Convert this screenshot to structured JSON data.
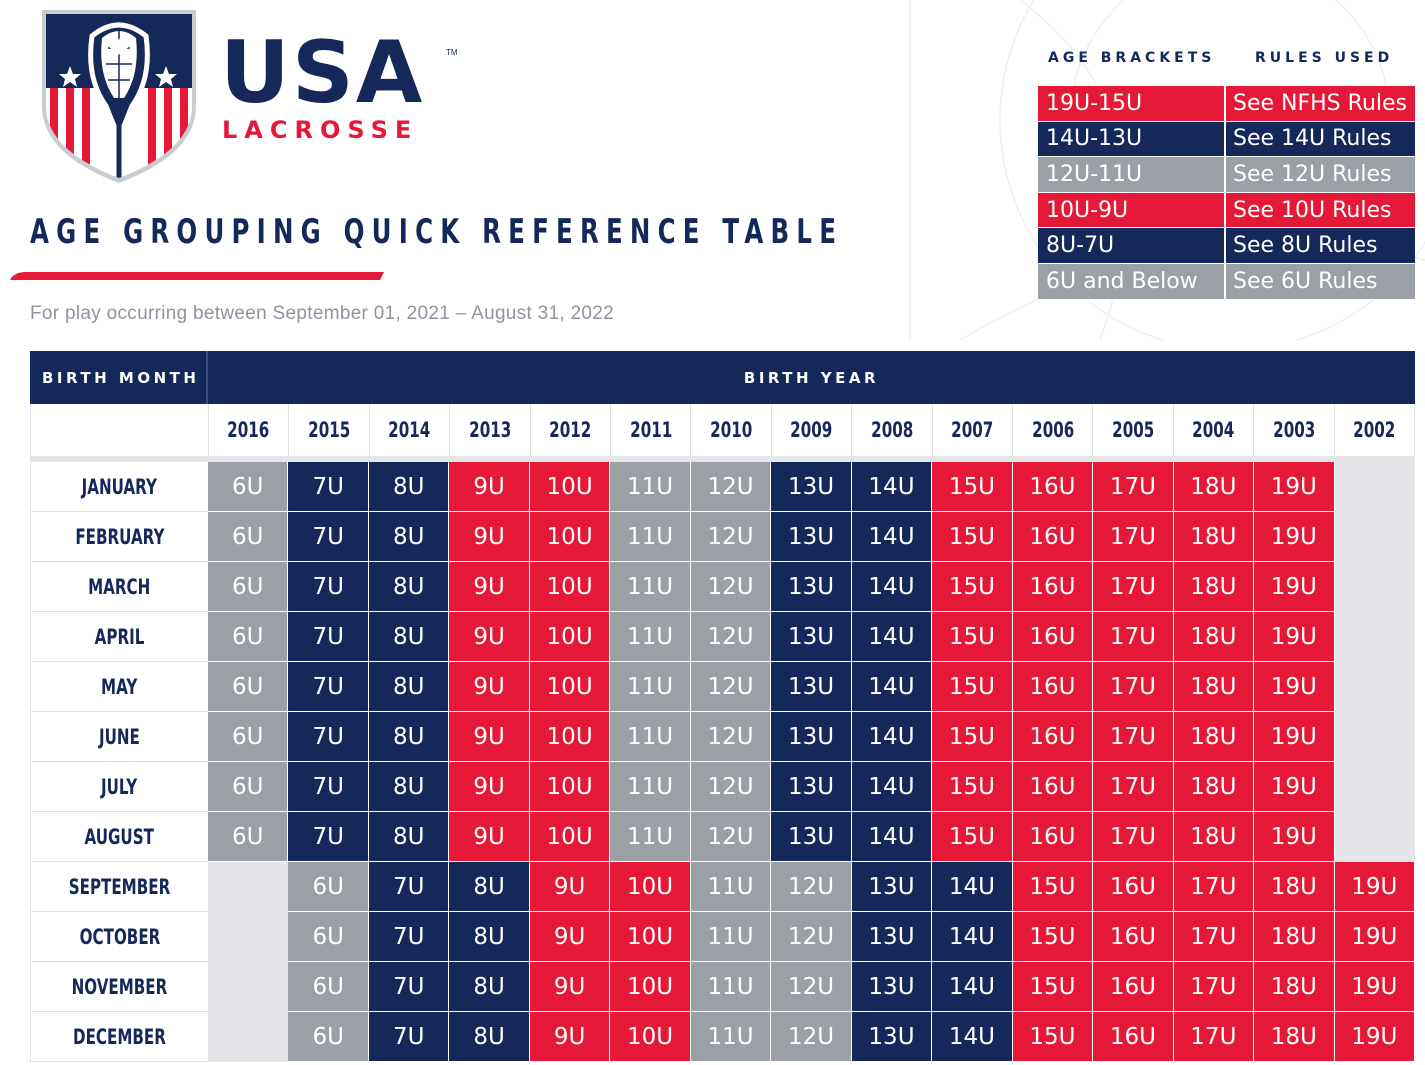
{
  "brand": {
    "wordmark": "USA",
    "tm": "TM",
    "sub": "LACROSSE"
  },
  "title": "AGE GROUPING QUICK REFERENCE TABLE",
  "subtitle": "For play occurring between September 01, 2021 – August 31, 2022",
  "colors": {
    "navy": "#14285a",
    "red": "#e51837",
    "gray": "#9ba0a7",
    "empty": "#e4e6ea"
  },
  "brackets": {
    "header_age": "AGE BRACKETS",
    "header_rules": "RULES USED",
    "rows": [
      {
        "age": "19U-15U",
        "rules": "See NFHS Rules",
        "color": "red"
      },
      {
        "age": "14U-13U",
        "rules": "See 14U Rules",
        "color": "navy"
      },
      {
        "age": "12U-11U",
        "rules": "See 12U Rules",
        "color": "gray"
      },
      {
        "age": "10U-9U",
        "rules": "See 10U Rules",
        "color": "red"
      },
      {
        "age": "8U-7U",
        "rules": "See 8U Rules",
        "color": "navy"
      },
      {
        "age": "6U and Below",
        "rules": "See 6U Rules",
        "color": "gray"
      }
    ]
  },
  "table": {
    "header_month": "BIRTH MONTH",
    "header_year": "BIRTH YEAR",
    "years": [
      "2016",
      "2015",
      "2014",
      "2013",
      "2012",
      "2011",
      "2010",
      "2009",
      "2008",
      "2007",
      "2006",
      "2005",
      "2004",
      "2003",
      "2002"
    ],
    "months": [
      "JANUARY",
      "FEBRUARY",
      "MARCH",
      "APRIL",
      "MAY",
      "JUNE",
      "JULY",
      "AUGUST",
      "SEPTEMBER",
      "OCTOBER",
      "NOVEMBER",
      "DECEMBER"
    ],
    "first_half": [
      "6U",
      "7U",
      "8U",
      "9U",
      "10U",
      "11U",
      "12U",
      "13U",
      "14U",
      "15U",
      "16U",
      "17U",
      "18U",
      "19U",
      ""
    ],
    "second_half": [
      "",
      "6U",
      "7U",
      "8U",
      "9U",
      "10U",
      "11U",
      "12U",
      "13U",
      "14U",
      "15U",
      "16U",
      "17U",
      "18U",
      "19U"
    ]
  }
}
